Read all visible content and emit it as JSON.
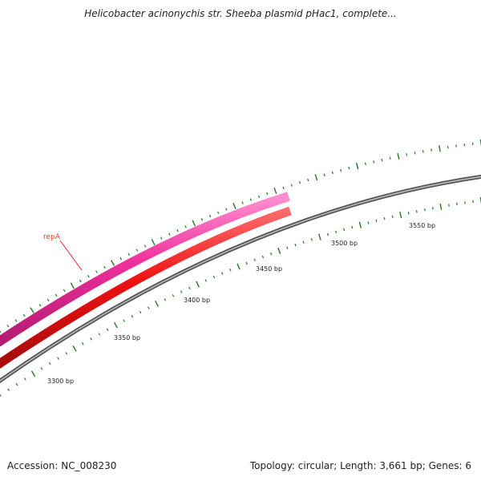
{
  "title": "Helicobacter acinonychis str. Sheeba plasmid pHac1, complete...",
  "footer": {
    "accession": "Accession: NC_008230",
    "stats": "Topology: circular; Length: 3,661 bp; Genes: 6"
  },
  "colors": {
    "gene_forward": "#ee2f9a",
    "gene_reverse": "#ee1111",
    "backbone": "#7a7a7a",
    "ticks": "#1f7a1f",
    "gene_label": "#e32222"
  },
  "genes": [
    {
      "name": "repA",
      "strand": "forward"
    }
  ],
  "scale_labels": [
    {
      "text": "3300 bp"
    },
    {
      "text": "3350 bp"
    },
    {
      "text": "3400 bp"
    },
    {
      "text": "3450 bp"
    },
    {
      "text": "3500 bp"
    },
    {
      "text": "3550 bp"
    }
  ]
}
